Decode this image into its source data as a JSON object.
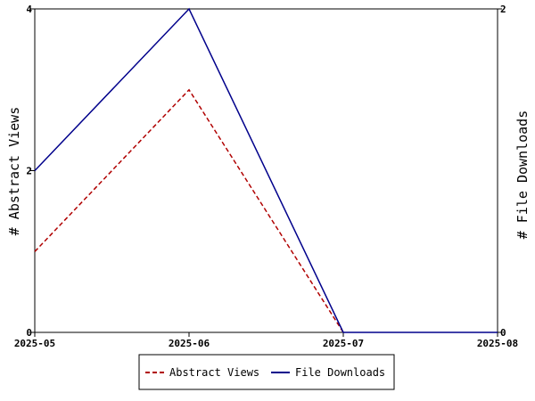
{
  "chart_data": {
    "type": "line",
    "x": [
      "2025-05",
      "2025-06",
      "2025-07",
      "2025-08"
    ],
    "y_left": {
      "label": "# Abstract Views",
      "ticks": [
        0,
        2,
        4
      ],
      "range": [
        0,
        4
      ]
    },
    "y_right": {
      "label": "# File Downloads",
      "ticks": [
        0,
        2
      ],
      "range": [
        0,
        2
      ]
    },
    "series": [
      {
        "name": "Abstract Views",
        "axis": "left",
        "color": "#b00000",
        "dash": "dashed",
        "points": [
          [
            0,
            1
          ],
          [
            1,
            3
          ],
          [
            2,
            0
          ]
        ]
      },
      {
        "name": "File Downloads",
        "axis": "right",
        "color": "#00008b",
        "dash": "solid",
        "points": [
          [
            0,
            1
          ],
          [
            1,
            2
          ],
          [
            2,
            0
          ],
          [
            3,
            0
          ]
        ]
      }
    ],
    "legend": {
      "position": "bottom-center"
    },
    "grid": false
  }
}
